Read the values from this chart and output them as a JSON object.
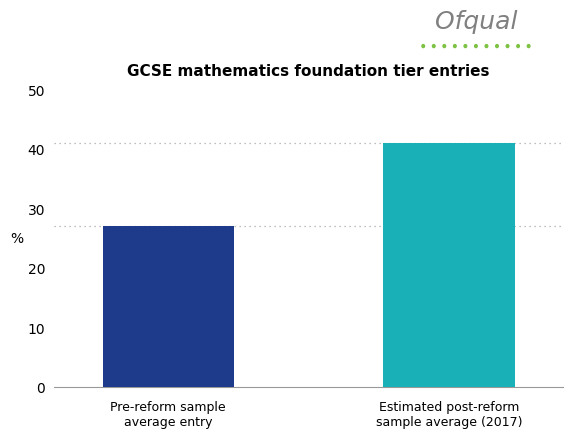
{
  "title": "GCSE mathematics foundation tier entries",
  "categories": [
    "Pre-reform sample\naverage entry",
    "Estimated post-reform\nsample average (2017)"
  ],
  "values": [
    27.0,
    41.0
  ],
  "bar_colors": [
    "#1e3a8a",
    "#1ab0b8"
  ],
  "ylabel": "%",
  "ylim": [
    0,
    50
  ],
  "yticks": [
    0,
    10,
    20,
    30,
    40,
    50
  ],
  "hline_color": "#aaaaaa",
  "background_color": "#ffffff",
  "title_fontsize": 11,
  "tick_fontsize": 10,
  "label_fontsize": 9,
  "ofqual_text": "Ofqual",
  "ofqual_color": "#808080",
  "ofqual_dots_color": "#7dc242",
  "bar_gap": 0.4,
  "x_positions": [
    1,
    2.6
  ]
}
